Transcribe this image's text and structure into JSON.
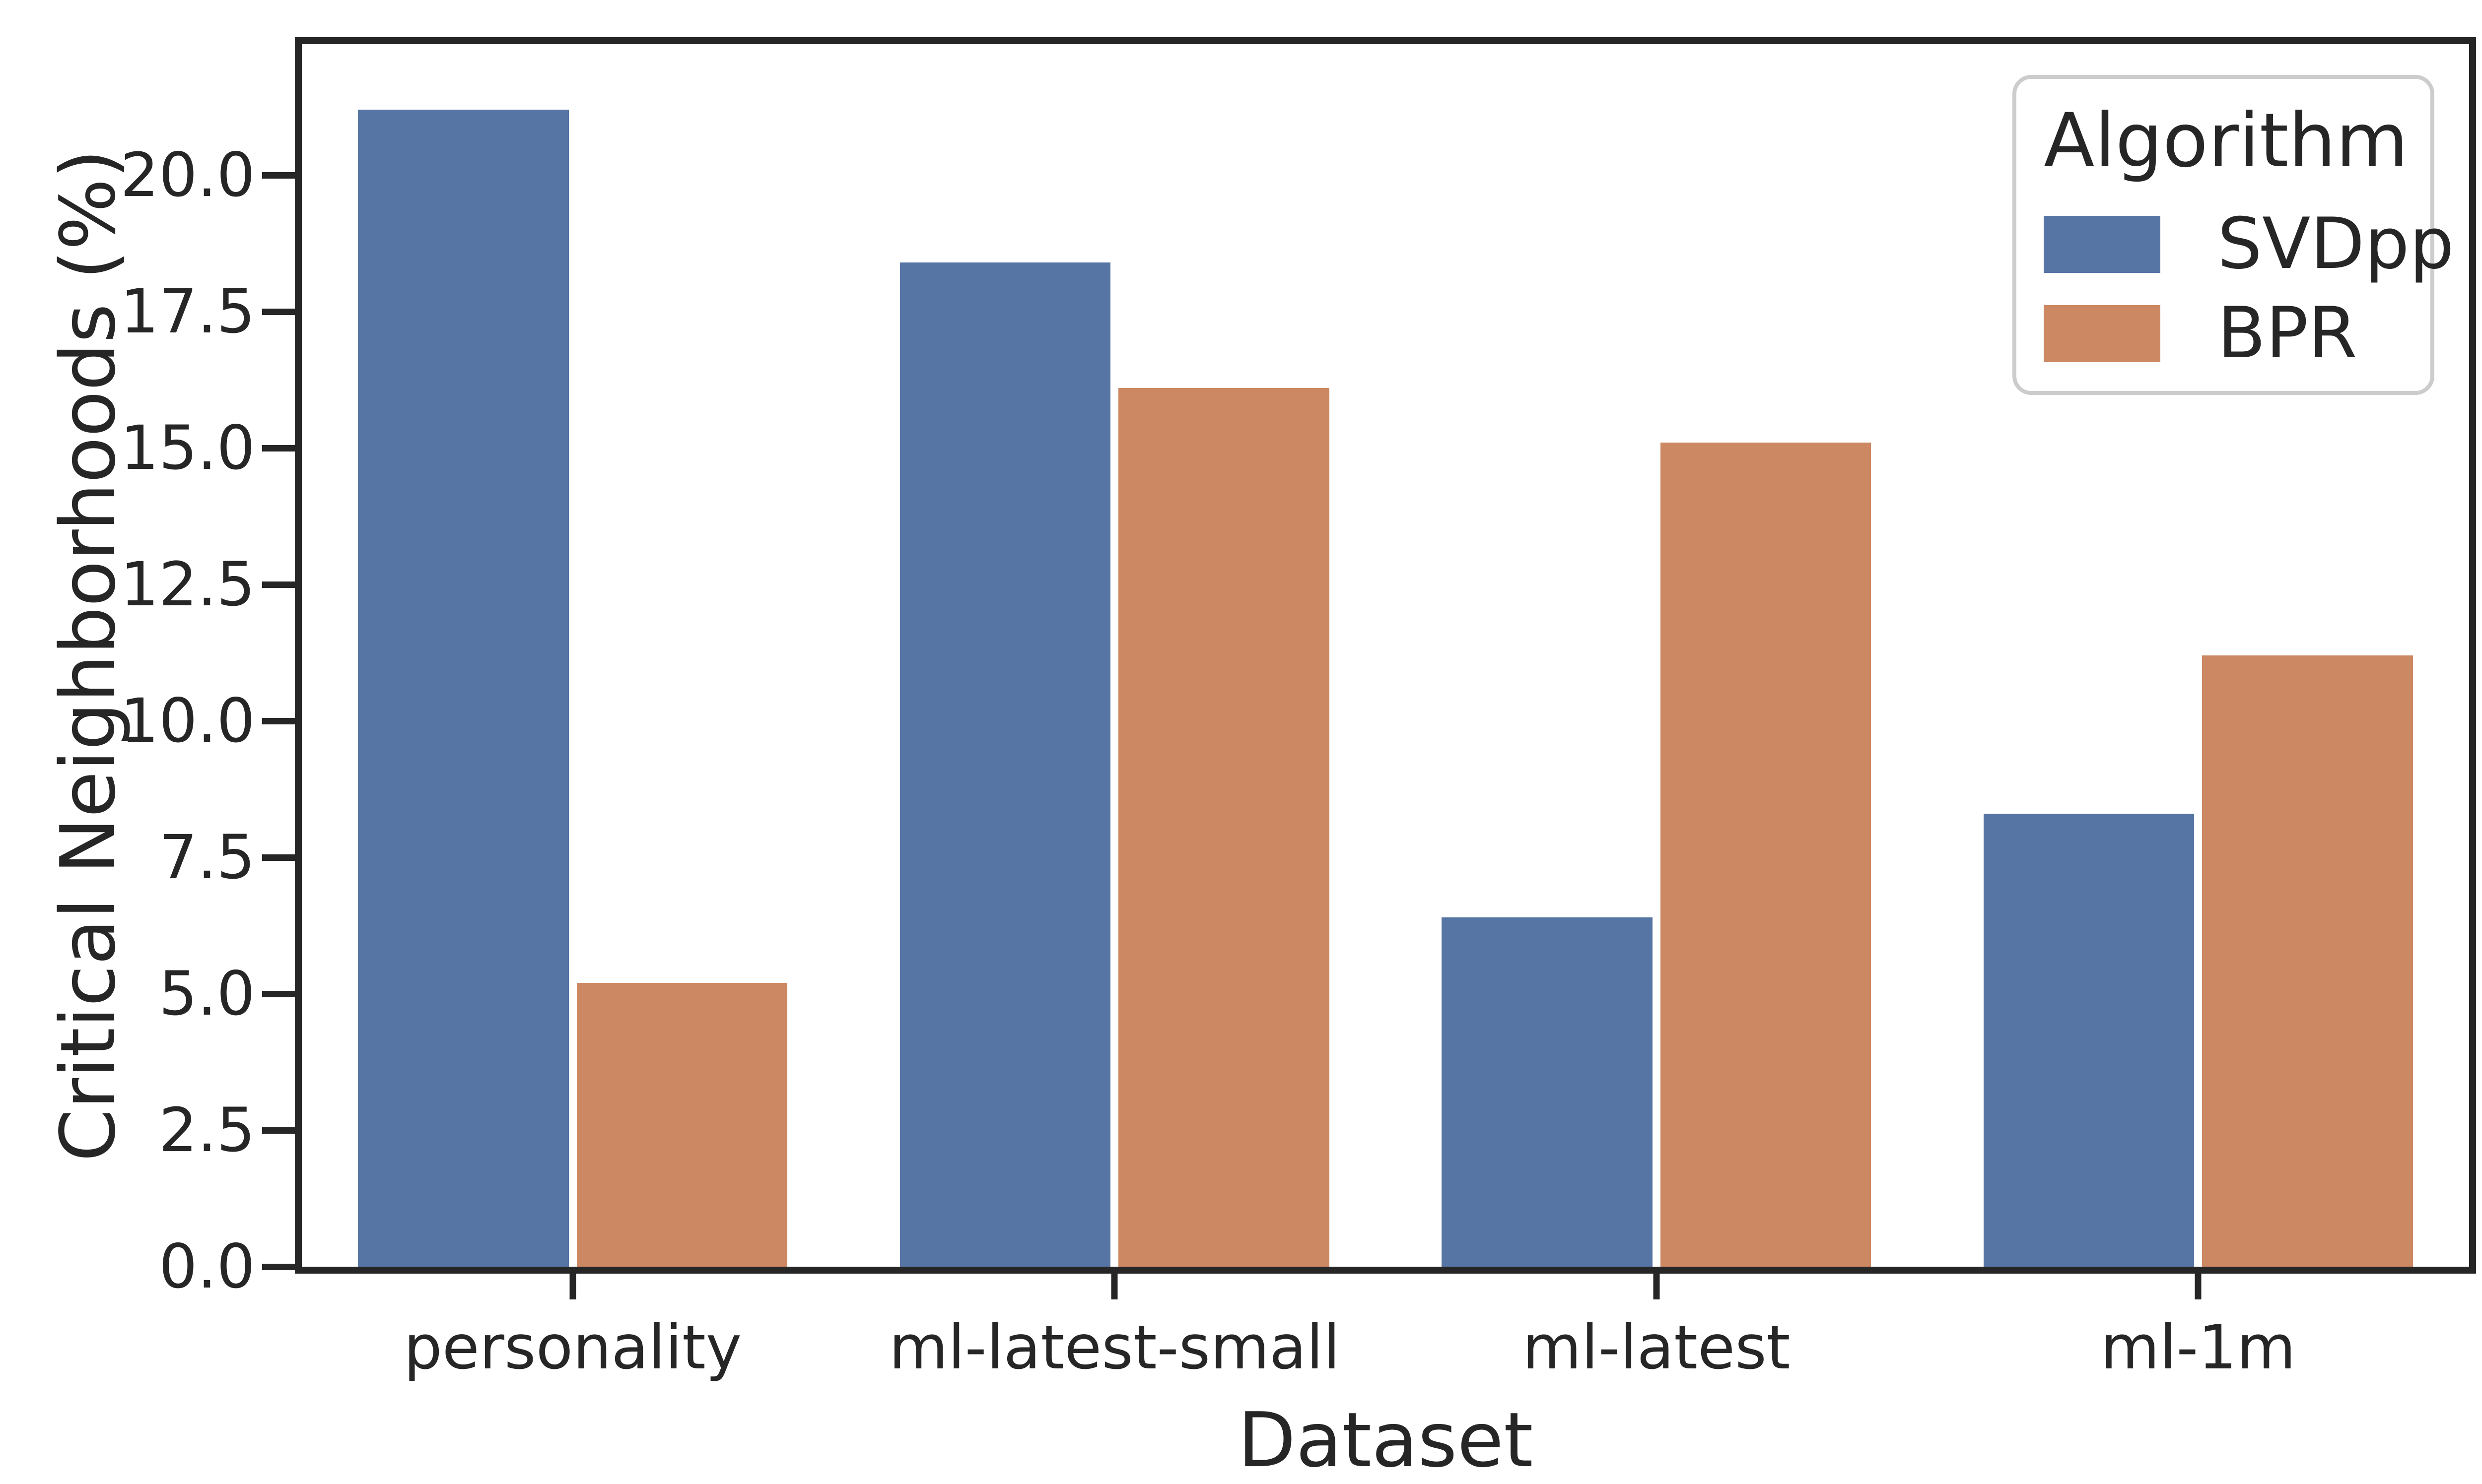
{
  "chart_data": {
    "type": "bar",
    "title": "",
    "xlabel": "Dataset",
    "ylabel": "Critical Neighborhoods (%)",
    "categories": [
      "personality",
      "ml-latest-small",
      "ml-latest",
      "ml-1m"
    ],
    "series": [
      {
        "name": "SVDpp",
        "color": "#5675A4",
        "values": [
          21.2,
          18.4,
          6.4,
          8.3
        ]
      },
      {
        "name": "BPR",
        "color": "#CC8863",
        "values": [
          5.2,
          16.1,
          15.1,
          11.2
        ]
      }
    ],
    "ylim": [
      0,
      22.4
    ],
    "y_ticks": [
      "0.0",
      "2.5",
      "5.0",
      "7.5",
      "10.0",
      "12.5",
      "15.0",
      "17.5",
      "20.0"
    ],
    "y_tick_values": [
      0,
      2.5,
      5,
      7.5,
      10,
      12.5,
      15,
      17.5,
      20
    ],
    "grid": false,
    "legend": {
      "title": "Algorithm",
      "entries": [
        "SVDpp",
        "BPR"
      ],
      "position": "upper right"
    }
  },
  "colors": {
    "axis": "#262626",
    "text": "#262626",
    "legend_border": "#cccccc",
    "background": "#ffffff"
  }
}
